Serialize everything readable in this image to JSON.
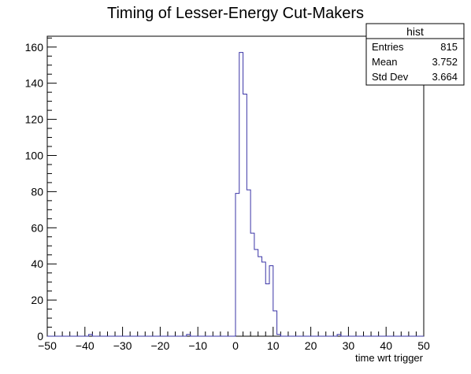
{
  "chart_data": {
    "type": "histogram",
    "title": "Timing of Lesser-Energy Cut-Makers",
    "xlabel": "time wrt trigger",
    "ylabel": "",
    "xlim": [
      -50,
      50
    ],
    "ylim": [
      0,
      166
    ],
    "bin_width": 1,
    "x_ticks": [
      -50,
      -40,
      -30,
      -20,
      -10,
      0,
      10,
      20,
      30,
      40,
      50
    ],
    "y_ticks": [
      0,
      20,
      40,
      60,
      80,
      100,
      120,
      140,
      160
    ],
    "line_color": "#3a34a6",
    "bins": [
      {
        "x": -39,
        "y": 1
      },
      {
        "x": -13,
        "y": 1
      },
      {
        "x": 0,
        "y": 79
      },
      {
        "x": 1,
        "y": 157
      },
      {
        "x": 2,
        "y": 134
      },
      {
        "x": 3,
        "y": 81
      },
      {
        "x": 4,
        "y": 57
      },
      {
        "x": 5,
        "y": 48
      },
      {
        "x": 6,
        "y": 44
      },
      {
        "x": 7,
        "y": 41
      },
      {
        "x": 8,
        "y": 29
      },
      {
        "x": 9,
        "y": 39
      },
      {
        "x": 10,
        "y": 14
      },
      {
        "x": 11,
        "y": 1
      },
      {
        "x": 27,
        "y": 1
      }
    ],
    "stats_box": {
      "title": "hist",
      "rows": [
        {
          "label": "Entries",
          "value": "815"
        },
        {
          "label": "Mean",
          "value": "3.752"
        },
        {
          "label": "Std Dev",
          "value": "3.664"
        }
      ]
    }
  }
}
